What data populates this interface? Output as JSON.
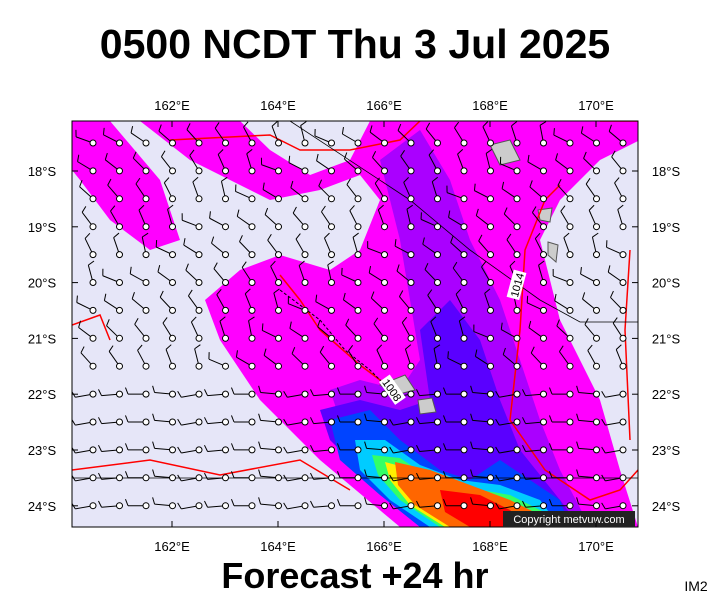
{
  "title": "0500 NCDT Thu 3 Jul 2025",
  "map": {
    "lon_labels": [
      "162°E",
      "164°E",
      "166°E",
      "168°E",
      "170°E"
    ],
    "lat_labels": [
      "18°S",
      "19°S",
      "20°S",
      "21°S",
      "22°S",
      "23°S",
      "24°S"
    ],
    "isobar_labels": [
      "1014",
      "1008"
    ],
    "copyright": "Copyright metvuw.com"
  },
  "footer": "Forecast +24 hr",
  "corner_label": "IM2"
}
